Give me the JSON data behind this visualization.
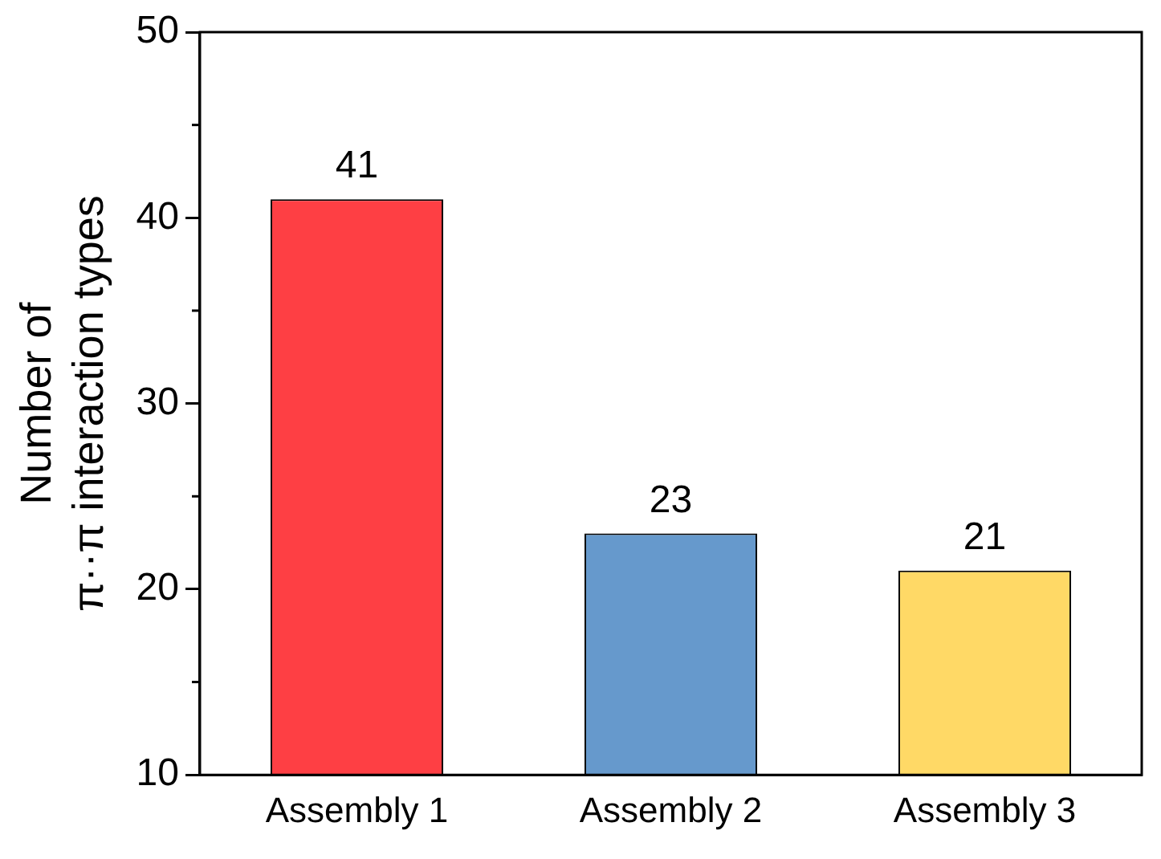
{
  "chart_data": {
    "type": "bar",
    "ylabel": "Number of\nπ··π interaction types",
    "categories": [
      "Assembly 1",
      "Assembly 2",
      "Assembly 3"
    ],
    "values": [
      41,
      23,
      21
    ],
    "colors": [
      "#fe3f44",
      "#6699cc",
      "#ffd966"
    ],
    "ylim": [
      10,
      50
    ],
    "yticks": [
      10,
      20,
      30,
      40,
      50
    ],
    "grid": false,
    "legend": false,
    "data_labels": true
  }
}
